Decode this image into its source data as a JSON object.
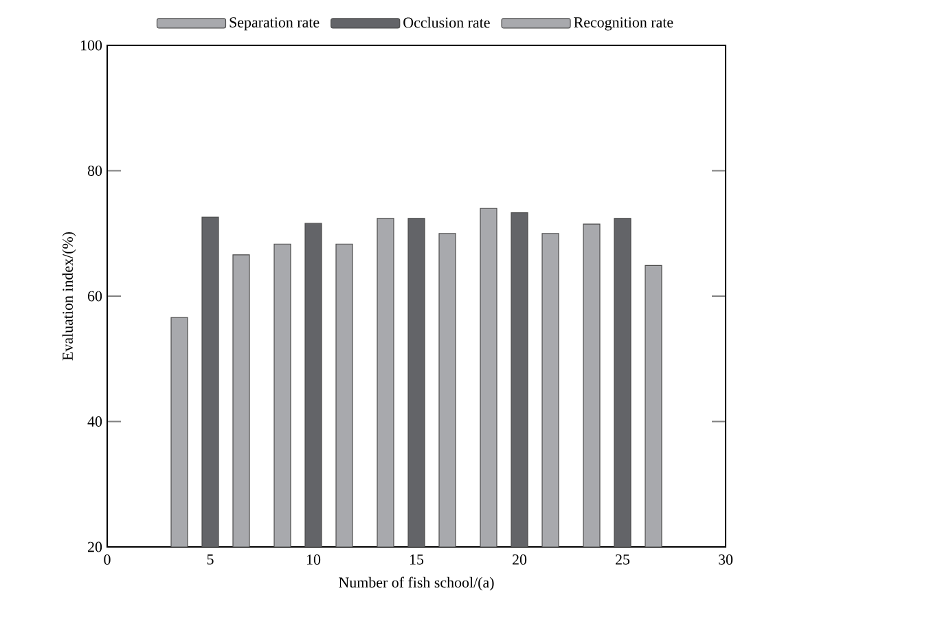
{
  "chart_data": {
    "type": "bar",
    "xlabel": "Number of fish school/(a)",
    "ylabel": "Evaluation index/(%)",
    "x": [
      5,
      10,
      15,
      20,
      25
    ],
    "series": [
      {
        "name": "Separation rate",
        "color": "#a8a9ad",
        "values": [
          56.6,
          68.3,
          72.4,
          74,
          71.5
        ]
      },
      {
        "name": "Occlusion rate",
        "color": "#636468",
        "values": [
          72.6,
          71.6,
          72.4,
          73.3,
          72.4
        ]
      },
      {
        "name": "Recognition rate",
        "color": "#a8a9ad",
        "values": [
          66.6,
          68.3,
          70,
          70,
          64.9
        ]
      }
    ],
    "xlim": [
      0,
      30
    ],
    "xticks": [
      0,
      5,
      10,
      15,
      20,
      25,
      30
    ],
    "ylim": [
      20,
      100
    ],
    "yticks": [
      20,
      40,
      60,
      80,
      100
    ],
    "grid": false,
    "legend": "top"
  }
}
